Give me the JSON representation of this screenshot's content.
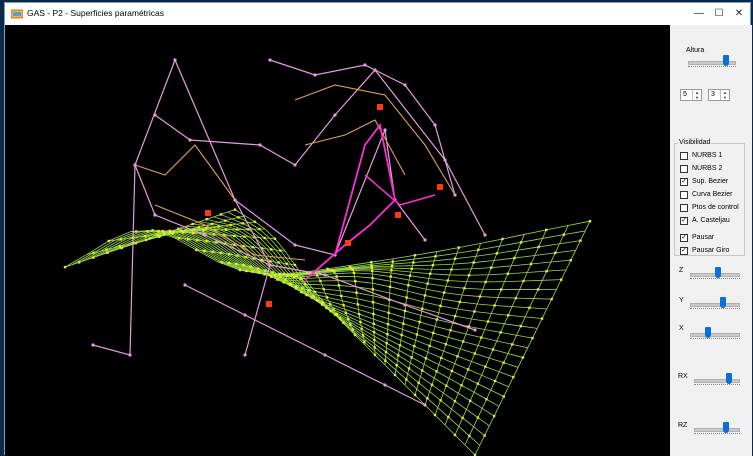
{
  "window": {
    "title": "GAS - P2 - Superficies paramétricas"
  },
  "titlebar": {
    "minimize_glyph": "—",
    "maximize_glyph": "☐",
    "close_glyph": "✕"
  },
  "panel": {
    "altura": {
      "label": "Altura",
      "value": 0.8
    },
    "spin1": {
      "value": "5"
    },
    "spin2": {
      "value": "3"
    },
    "visibilidad": {
      "legend": "Visibilidad",
      "items": [
        {
          "label": "NURBS 1",
          "checked": false
        },
        {
          "label": "NURBS 2",
          "checked": false
        },
        {
          "label": "Sup. Bezier",
          "checked": true
        },
        {
          "label": "Curva Bezier",
          "checked": false
        },
        {
          "label": "Ptos de control",
          "checked": false
        },
        {
          "label": "A. Casteljau",
          "checked": true
        }
      ]
    },
    "pausar": {
      "label": "Pausar",
      "checked": true
    },
    "pausar_giro": {
      "label": "Pausar Giro",
      "checked": true
    },
    "z": {
      "label": "Z",
      "value": 0.55
    },
    "y": {
      "label": "Y",
      "value": 0.65
    },
    "x": {
      "label": "X",
      "value": 0.35
    },
    "rx": {
      "label": "RX",
      "value": 0.75
    },
    "rz": {
      "label": "RZ",
      "value": 0.7
    }
  },
  "colors": {
    "surface": "#9bd94a",
    "surface_points": "#e8f020",
    "control_polygon": "#e79be0",
    "casteljau": "#e0a050",
    "highlight": "#ff2dd6",
    "key_points": "#ff3a10",
    "slider_thumb": "#0a6fd8"
  }
}
